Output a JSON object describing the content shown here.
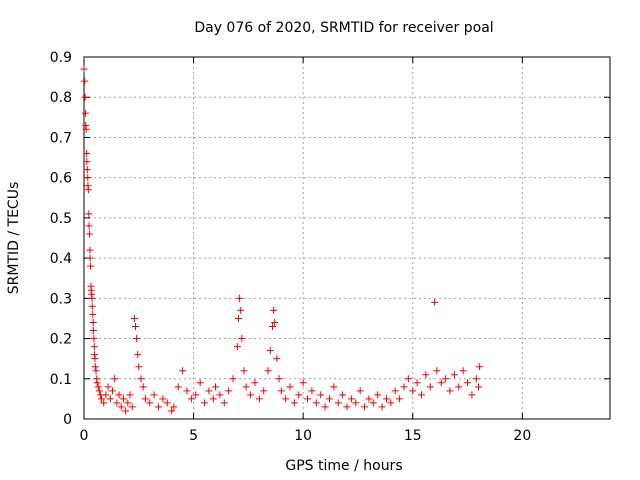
{
  "chart_data": {
    "type": "scatter",
    "title": "Day 076 of 2020, SRMTID for receiver poal",
    "xlabel": "GPS time / hours",
    "ylabel": "SRMTID / TECUs",
    "xlim": [
      0,
      24
    ],
    "ylim": [
      0,
      0.9
    ],
    "xticks": [
      0,
      5,
      10,
      15,
      20
    ],
    "xtick_labels": [
      "0",
      "5",
      "10",
      "15",
      "20"
    ],
    "yticks": [
      0,
      0.1,
      0.2,
      0.3,
      0.4,
      0.5,
      0.6,
      0.7,
      0.8,
      0.9
    ],
    "ytick_labels": [
      "0",
      "0.1",
      "0.2",
      "0.3",
      "0.4",
      "0.5",
      "0.6",
      "0.7",
      "0.8",
      "0.9"
    ],
    "grid": true,
    "marker": "+",
    "color": "#ff0000",
    "series": [
      {
        "name": "SRMTID",
        "points": [
          [
            0.0,
            0.87
          ],
          [
            0.03,
            0.84
          ],
          [
            0.05,
            0.8
          ],
          [
            0.07,
            0.76
          ],
          [
            0.08,
            0.73
          ],
          [
            0.1,
            0.72
          ],
          [
            0.12,
            0.66
          ],
          [
            0.13,
            0.64
          ],
          [
            0.15,
            0.62
          ],
          [
            0.17,
            0.6
          ],
          [
            0.18,
            0.58
          ],
          [
            0.2,
            0.57
          ],
          [
            0.22,
            0.51
          ],
          [
            0.23,
            0.48
          ],
          [
            0.25,
            0.46
          ],
          [
            0.27,
            0.42
          ],
          [
            0.28,
            0.4
          ],
          [
            0.3,
            0.38
          ],
          [
            0.32,
            0.33
          ],
          [
            0.33,
            0.32
          ],
          [
            0.35,
            0.31
          ],
          [
            0.37,
            0.3
          ],
          [
            0.38,
            0.28
          ],
          [
            0.4,
            0.26
          ],
          [
            0.42,
            0.24
          ],
          [
            0.43,
            0.22
          ],
          [
            0.45,
            0.2
          ],
          [
            0.47,
            0.18
          ],
          [
            0.48,
            0.16
          ],
          [
            0.5,
            0.15
          ],
          [
            0.52,
            0.13
          ],
          [
            0.55,
            0.12
          ],
          [
            0.58,
            0.1
          ],
          [
            0.6,
            0.09
          ],
          [
            0.65,
            0.08
          ],
          [
            0.7,
            0.07
          ],
          [
            0.75,
            0.06
          ],
          [
            0.8,
            0.05
          ],
          [
            0.9,
            0.04
          ],
          [
            1.0,
            0.06
          ],
          [
            1.1,
            0.08
          ],
          [
            1.2,
            0.05
          ],
          [
            1.3,
            0.07
          ],
          [
            1.4,
            0.1
          ],
          [
            1.5,
            0.04
          ],
          [
            1.6,
            0.06
          ],
          [
            1.7,
            0.03
          ],
          [
            1.8,
            0.05
          ],
          [
            1.9,
            0.02
          ],
          [
            2.0,
            0.04
          ],
          [
            2.1,
            0.06
          ],
          [
            2.2,
            0.03
          ],
          [
            2.3,
            0.25
          ],
          [
            2.35,
            0.23
          ],
          [
            2.4,
            0.2
          ],
          [
            2.45,
            0.16
          ],
          [
            2.5,
            0.13
          ],
          [
            2.6,
            0.1
          ],
          [
            2.7,
            0.08
          ],
          [
            2.8,
            0.05
          ],
          [
            3.0,
            0.04
          ],
          [
            3.2,
            0.06
          ],
          [
            3.4,
            0.03
          ],
          [
            3.6,
            0.05
          ],
          [
            3.8,
            0.04
          ],
          [
            4.0,
            0.02
          ],
          [
            4.1,
            0.03
          ],
          [
            4.3,
            0.08
          ],
          [
            4.5,
            0.12
          ],
          [
            4.7,
            0.07
          ],
          [
            4.9,
            0.05
          ],
          [
            5.1,
            0.06
          ],
          [
            5.3,
            0.09
          ],
          [
            5.5,
            0.04
          ],
          [
            5.7,
            0.07
          ],
          [
            5.9,
            0.05
          ],
          [
            6.0,
            0.08
          ],
          [
            6.2,
            0.06
          ],
          [
            6.4,
            0.04
          ],
          [
            6.6,
            0.07
          ],
          [
            6.8,
            0.1
          ],
          [
            7.0,
            0.18
          ],
          [
            7.05,
            0.25
          ],
          [
            7.1,
            0.3
          ],
          [
            7.15,
            0.27
          ],
          [
            7.2,
            0.2
          ],
          [
            7.3,
            0.12
          ],
          [
            7.4,
            0.08
          ],
          [
            7.6,
            0.06
          ],
          [
            7.8,
            0.09
          ],
          [
            8.0,
            0.05
          ],
          [
            8.2,
            0.07
          ],
          [
            8.4,
            0.12
          ],
          [
            8.5,
            0.17
          ],
          [
            8.6,
            0.23
          ],
          [
            8.65,
            0.27
          ],
          [
            8.7,
            0.24
          ],
          [
            8.8,
            0.15
          ],
          [
            8.9,
            0.1
          ],
          [
            9.0,
            0.07
          ],
          [
            9.2,
            0.05
          ],
          [
            9.4,
            0.08
          ],
          [
            9.6,
            0.04
          ],
          [
            9.8,
            0.06
          ],
          [
            10.0,
            0.09
          ],
          [
            10.2,
            0.05
          ],
          [
            10.4,
            0.07
          ],
          [
            10.6,
            0.04
          ],
          [
            10.8,
            0.06
          ],
          [
            11.0,
            0.03
          ],
          [
            11.2,
            0.05
          ],
          [
            11.4,
            0.08
          ],
          [
            11.6,
            0.04
          ],
          [
            11.8,
            0.06
          ],
          [
            12.0,
            0.03
          ],
          [
            12.2,
            0.05
          ],
          [
            12.4,
            0.04
          ],
          [
            12.6,
            0.07
          ],
          [
            12.8,
            0.03
          ],
          [
            13.0,
            0.05
          ],
          [
            13.2,
            0.04
          ],
          [
            13.4,
            0.06
          ],
          [
            13.6,
            0.03
          ],
          [
            13.8,
            0.05
          ],
          [
            14.0,
            0.04
          ],
          [
            14.2,
            0.07
          ],
          [
            14.4,
            0.05
          ],
          [
            14.6,
            0.08
          ],
          [
            14.8,
            0.1
          ],
          [
            15.0,
            0.07
          ],
          [
            15.2,
            0.09
          ],
          [
            15.4,
            0.06
          ],
          [
            15.6,
            0.11
          ],
          [
            15.8,
            0.08
          ],
          [
            16.0,
            0.29
          ],
          [
            16.1,
            0.12
          ],
          [
            16.3,
            0.09
          ],
          [
            16.5,
            0.1
          ],
          [
            16.7,
            0.07
          ],
          [
            16.9,
            0.11
          ],
          [
            17.1,
            0.08
          ],
          [
            17.3,
            0.12
          ],
          [
            17.5,
            0.09
          ],
          [
            17.7,
            0.06
          ],
          [
            17.9,
            0.1
          ],
          [
            18.0,
            0.08
          ],
          [
            18.05,
            0.13
          ]
        ]
      }
    ]
  }
}
